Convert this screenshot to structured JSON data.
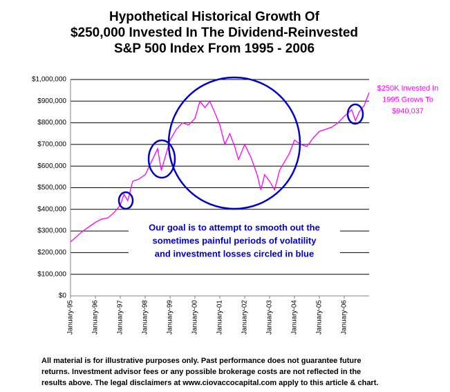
{
  "chart_data": {
    "type": "line",
    "title": [
      "Hypothetical Historical Growth Of",
      "$250,000 Invested In The Dividend-Reinvested",
      "S&P 500 Index From 1995 - 2006"
    ],
    "x": [
      1995.0,
      1995.25,
      1995.5,
      1995.75,
      1996.0,
      1996.25,
      1996.5,
      1996.75,
      1997.0,
      1997.15,
      1997.3,
      1997.5,
      1997.75,
      1998.0,
      1998.25,
      1998.5,
      1998.65,
      1998.8,
      1999.0,
      1999.25,
      1999.5,
      1999.75,
      2000.0,
      2000.2,
      2000.4,
      2000.6,
      2000.75,
      2001.0,
      2001.2,
      2001.4,
      2001.6,
      2001.75,
      2002.0,
      2002.25,
      2002.5,
      2002.65,
      2002.8,
      2003.0,
      2003.2,
      2003.4,
      2003.6,
      2003.8,
      2004.0,
      2004.25,
      2004.5,
      2004.75,
      2005.0,
      2005.25,
      2005.5,
      2005.75,
      2006.0,
      2006.3,
      2006.45,
      2006.6,
      2006.8,
      2007.0
    ],
    "values": [
      250000,
      275000,
      300000,
      320000,
      340000,
      355000,
      360000,
      385000,
      420000,
      470000,
      440000,
      530000,
      540000,
      560000,
      620000,
      680000,
      580000,
      640000,
      720000,
      770000,
      800000,
      790000,
      820000,
      900000,
      870000,
      900000,
      860000,
      790000,
      700000,
      750000,
      690000,
      630000,
      700000,
      640000,
      560000,
      490000,
      560000,
      530000,
      490000,
      580000,
      620000,
      660000,
      720000,
      700000,
      690000,
      730000,
      760000,
      770000,
      780000,
      800000,
      830000,
      860000,
      810000,
      850000,
      880000,
      940037
    ],
    "color": "#ff00ff",
    "xlim": [
      1995,
      2007
    ],
    "xticks": [
      {
        "value": 1995,
        "label": "January-95"
      },
      {
        "value": 1996,
        "label": "January-96"
      },
      {
        "value": 1997,
        "label": "January-97"
      },
      {
        "value": 1998,
        "label": "January-98"
      },
      {
        "value": 1999,
        "label": "January-99"
      },
      {
        "value": 2000,
        "label": "January-00"
      },
      {
        "value": 2001,
        "label": "January-01"
      },
      {
        "value": 2002,
        "label": "January-02"
      },
      {
        "value": 2003,
        "label": "January-03"
      },
      {
        "value": 2004,
        "label": "January-04"
      },
      {
        "value": 2005,
        "label": "January-05"
      },
      {
        "value": 2006,
        "label": "January-06"
      }
    ],
    "ylim": [
      0,
      1000000
    ],
    "yticks": [
      {
        "value": 0,
        "label": "$0"
      },
      {
        "value": 100000,
        "label": "$100,000"
      },
      {
        "value": 200000,
        "label": "$200,000"
      },
      {
        "value": 300000,
        "label": "$300,000"
      },
      {
        "value": 400000,
        "label": "$400,000"
      },
      {
        "value": 500000,
        "label": "$500,000"
      },
      {
        "value": 600000,
        "label": "$600,000"
      },
      {
        "value": 700000,
        "label": "$700,000"
      },
      {
        "value": 800000,
        "label": "$800,000"
      },
      {
        "value": 900000,
        "label": "$900,000"
      },
      {
        "value": 1000000,
        "label": "$1,000,000"
      }
    ],
    "grid": true,
    "annotation": [
      "Our goal is to attempt to smooth out the",
      "sometimes painful periods of volatility",
      "and investment losses circled in blue"
    ],
    "side_note": [
      "$250K Invested In",
      "1995 Grows To",
      "$940,037"
    ],
    "footer": [
      "All material is for illustrative purposes only.  Past performance does not guarantee future",
      "returns.  Investment advisor fees or any possible brokerage costs are not reflected in the",
      "results above. The legal disclaimers at www.ciovaccocapital.com apply to this article & chart."
    ]
  }
}
